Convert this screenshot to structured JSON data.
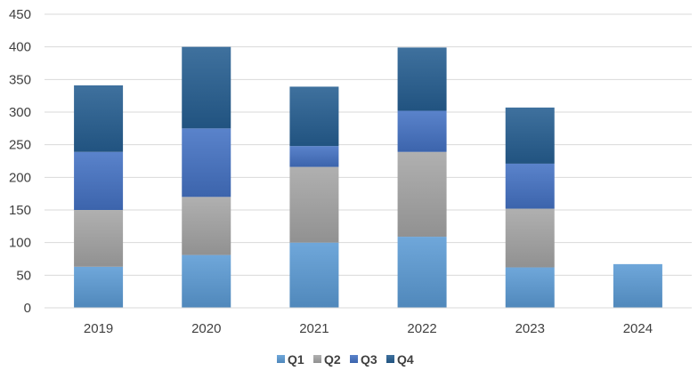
{
  "chart_data": {
    "type": "bar",
    "stacked": true,
    "categories": [
      "2019",
      "2020",
      "2021",
      "2022",
      "2023",
      "2024"
    ],
    "series": [
      {
        "name": "Q1",
        "values": [
          63,
          81,
          100,
          109,
          62,
          67
        ]
      },
      {
        "name": "Q2",
        "values": [
          87,
          89,
          116,
          130,
          90,
          0
        ]
      },
      {
        "name": "Q3",
        "values": [
          89,
          105,
          32,
          63,
          69,
          0
        ]
      },
      {
        "name": "Q4",
        "values": [
          102,
          125,
          91,
          97,
          86,
          0
        ]
      }
    ],
    "colors": [
      "#5b9bd5",
      "#a5a5a5",
      "#4472c4",
      "#255e91"
    ],
    "ylim": [
      0,
      450
    ],
    "yticks": [
      0,
      50,
      100,
      150,
      200,
      250,
      300,
      350,
      400,
      450
    ],
    "grid": true,
    "legend": "bottom-center",
    "title": "",
    "xlabel": "",
    "ylabel": ""
  }
}
